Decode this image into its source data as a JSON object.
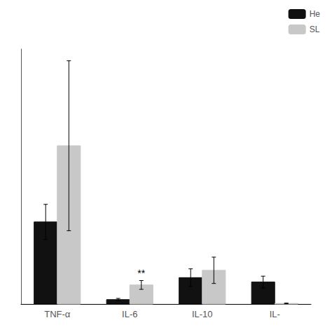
{
  "chart_data": {
    "type": "bar",
    "categories": [
      "TNF-α",
      "IL-6",
      "IL-10",
      "IL-"
    ],
    "series": [
      {
        "name": "He",
        "color": "#111111",
        "values": [
          280,
          15,
          90,
          75
        ],
        "errors": [
          60,
          4,
          30,
          20
        ]
      },
      {
        "name": "SL",
        "color": "#c8c8c8",
        "values": [
          540,
          65,
          115,
          2
        ],
        "errors": [
          290,
          15,
          45,
          1
        ]
      }
    ],
    "annotations": [
      {
        "text": "**",
        "category": "IL-6",
        "series": "SL"
      }
    ],
    "ylim": [
      0,
      870
    ],
    "tick_labels": "x",
    "legend": "upper right",
    "grid": false
  }
}
